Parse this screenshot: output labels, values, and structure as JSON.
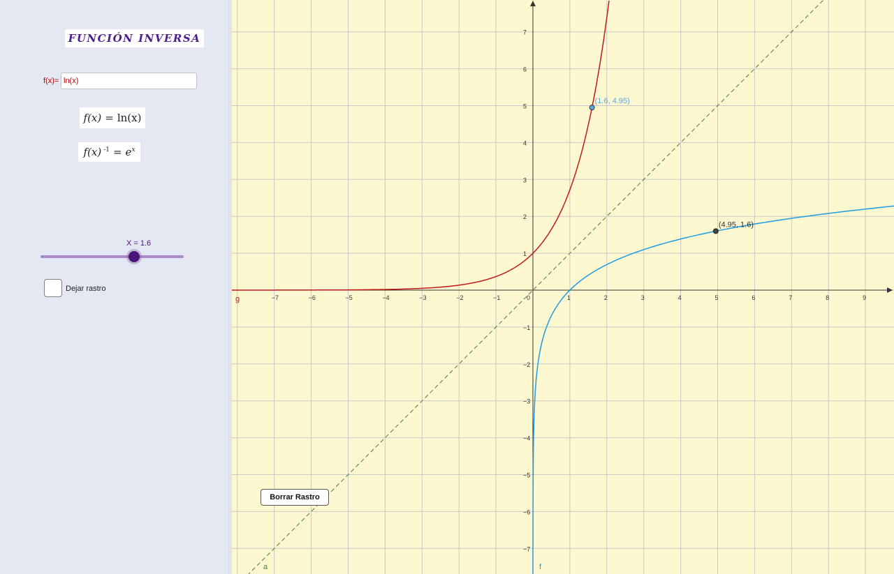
{
  "panel": {
    "title": "FUNCIÓN INVERSA",
    "function_input": {
      "label": "f(x)=",
      "value": "ln(x)"
    },
    "formula_function": {
      "lhs": "f(x)",
      "eq": "=",
      "rhs": "ln(x)"
    },
    "formula_inverse": {
      "lhs": "f(x)",
      "exponent": "-1",
      "eq": "=",
      "base": "e",
      "power": "x"
    },
    "slider": {
      "label": "X = 1.6",
      "min": 0,
      "max": 2.5,
      "value": 1.6
    },
    "trace_checkbox": {
      "label": "Dejar rastro",
      "checked": false
    }
  },
  "graph": {
    "x_ticks": [
      "−7",
      "−6",
      "−5",
      "−4",
      "−3",
      "−2",
      "−1",
      "0",
      "1",
      "2",
      "3",
      "4",
      "5",
      "6",
      "7",
      "8",
      "9"
    ],
    "y_ticks": [
      "7",
      "6",
      "5",
      "4",
      "3",
      "2",
      "1",
      "−1",
      "−2",
      "−3",
      "−4",
      "−5",
      "−6",
      "−7"
    ],
    "curve_labels": {
      "g": "g",
      "f": "f",
      "a": "a"
    },
    "point_on_inverse": {
      "label": "(1.6, 4.95)",
      "x": 1.6,
      "y": 4.95
    },
    "point_on_function": {
      "label": "(4.95, 1.6)",
      "x": 4.95,
      "y": 1.6
    },
    "colors": {
      "function": "#1e9be6",
      "inverse": "#c01a1a",
      "identity": "#4a7a3a",
      "background": "#fdf8cf",
      "grid": "#c8c8c8"
    }
  },
  "buttons": {
    "clear_trace": "Borrar Rastro"
  }
}
